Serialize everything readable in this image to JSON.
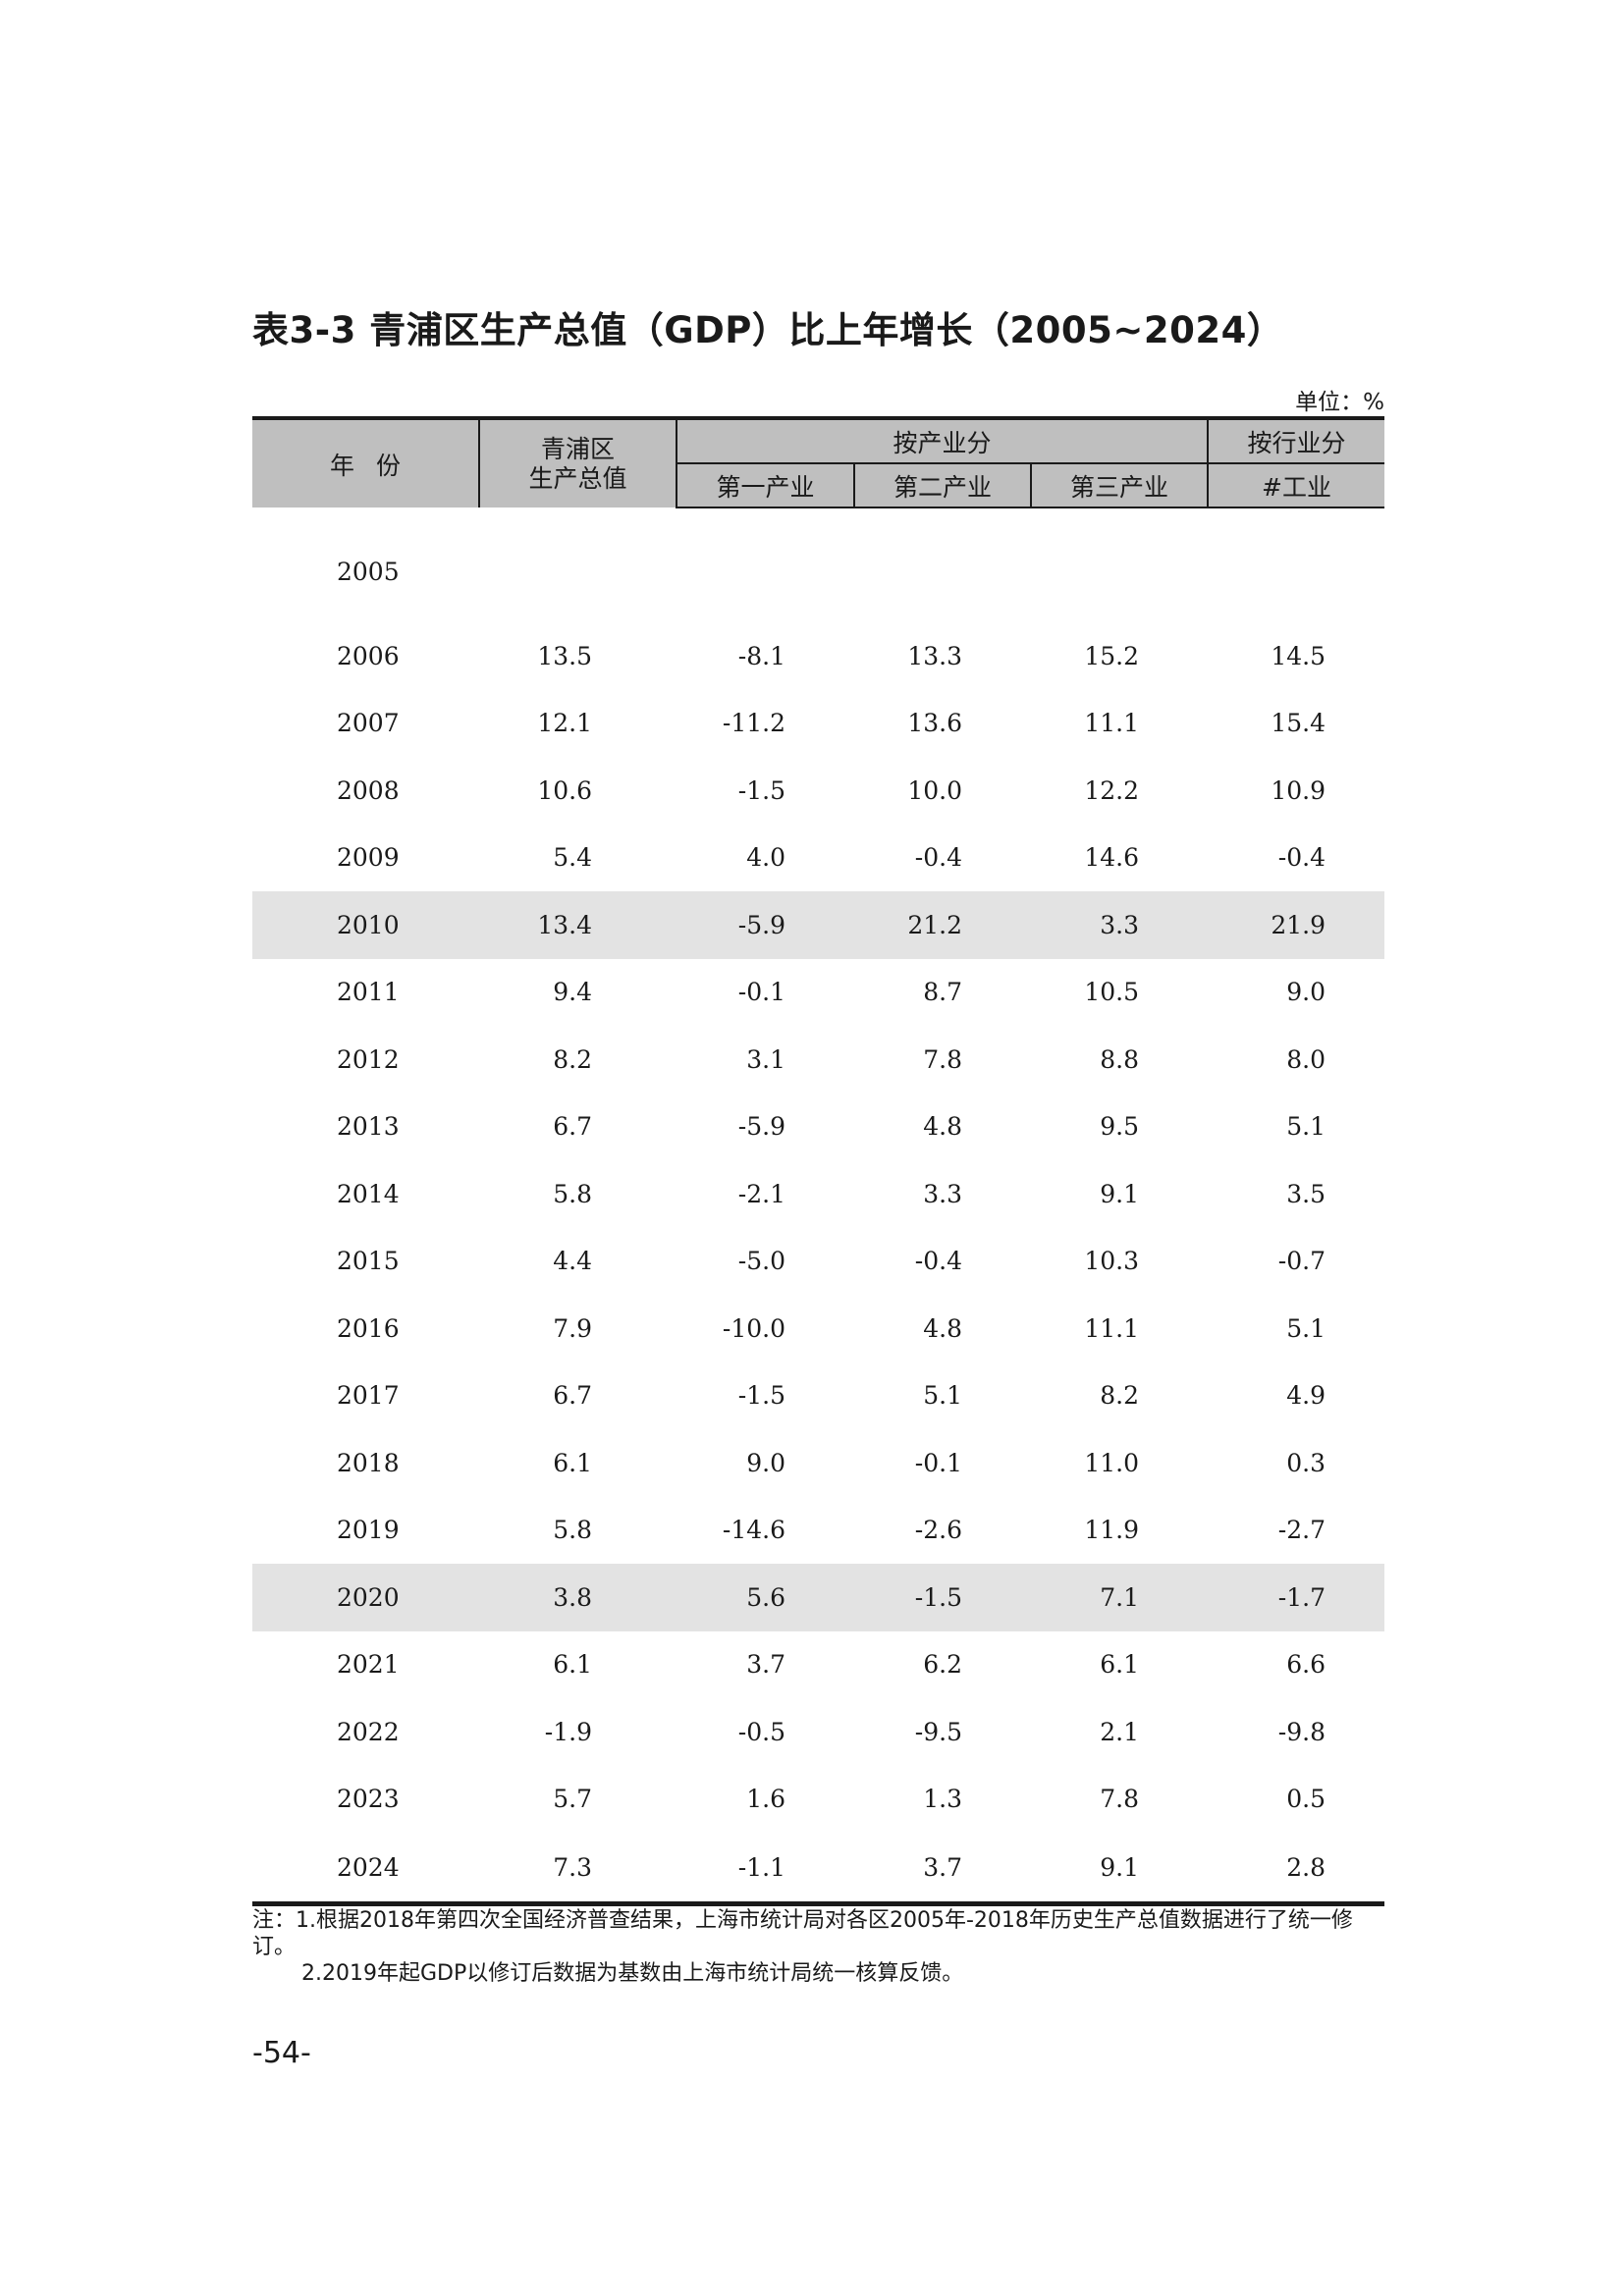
{
  "title": "表3-3  青浦区生产总值（GDP）比上年增长（2005~2024）",
  "unit": "单位：%",
  "header": {
    "year": "年份",
    "gdp_line1": "青浦区",
    "gdp_line2": "生产总值",
    "by_industry": "按产业分",
    "by_sector": "按行业分",
    "primary": "第一产业",
    "secondary": "第二产业",
    "tertiary": "第三产业",
    "industry": "#工业"
  },
  "rows": [
    {
      "year": "2005",
      "gdp": "",
      "primary": "",
      "secondary": "",
      "tertiary": "",
      "industry": ""
    },
    {
      "year": "2006",
      "gdp": "13.5",
      "primary": "-8.1",
      "secondary": "13.3",
      "tertiary": "15.2",
      "industry": "14.5"
    },
    {
      "year": "2007",
      "gdp": "12.1",
      "primary": "-11.2",
      "secondary": "13.6",
      "tertiary": "11.1",
      "industry": "15.4"
    },
    {
      "year": "2008",
      "gdp": "10.6",
      "primary": "-1.5",
      "secondary": "10.0",
      "tertiary": "12.2",
      "industry": "10.9"
    },
    {
      "year": "2009",
      "gdp": "5.4",
      "primary": "4.0",
      "secondary": "-0.4",
      "tertiary": "14.6",
      "industry": "-0.4"
    },
    {
      "year": "2010",
      "gdp": "13.4",
      "primary": "-5.9",
      "secondary": "21.2",
      "tertiary": "3.3",
      "industry": "21.9"
    },
    {
      "year": "2011",
      "gdp": "9.4",
      "primary": "-0.1",
      "secondary": "8.7",
      "tertiary": "10.5",
      "industry": "9.0"
    },
    {
      "year": "2012",
      "gdp": "8.2",
      "primary": "3.1",
      "secondary": "7.8",
      "tertiary": "8.8",
      "industry": "8.0"
    },
    {
      "year": "2013",
      "gdp": "6.7",
      "primary": "-5.9",
      "secondary": "4.8",
      "tertiary": "9.5",
      "industry": "5.1"
    },
    {
      "year": "2014",
      "gdp": "5.8",
      "primary": "-2.1",
      "secondary": "3.3",
      "tertiary": "9.1",
      "industry": "3.5"
    },
    {
      "year": "2015",
      "gdp": "4.4",
      "primary": "-5.0",
      "secondary": "-0.4",
      "tertiary": "10.3",
      "industry": "-0.7"
    },
    {
      "year": "2016",
      "gdp": "7.9",
      "primary": "-10.0",
      "secondary": "4.8",
      "tertiary": "11.1",
      "industry": "5.1"
    },
    {
      "year": "2017",
      "gdp": "6.7",
      "primary": "-1.5",
      "secondary": "5.1",
      "tertiary": "8.2",
      "industry": "4.9"
    },
    {
      "year": "2018",
      "gdp": "6.1",
      "primary": "9.0",
      "secondary": "-0.1",
      "tertiary": "11.0",
      "industry": "0.3"
    },
    {
      "year": "2019",
      "gdp": "5.8",
      "primary": "-14.6",
      "secondary": "-2.6",
      "tertiary": "11.9",
      "industry": "-2.7"
    },
    {
      "year": "2020",
      "gdp": "3.8",
      "primary": "5.6",
      "secondary": "-1.5",
      "tertiary": "7.1",
      "industry": "-1.7"
    },
    {
      "year": "2021",
      "gdp": "6.1",
      "primary": "3.7",
      "secondary": "6.2",
      "tertiary": "6.1",
      "industry": "6.6"
    },
    {
      "year": "2022",
      "gdp": "-1.9",
      "primary": "-0.5",
      "secondary": "-9.5",
      "tertiary": "2.1",
      "industry": "-9.8"
    },
    {
      "year": "2023",
      "gdp": "5.7",
      "primary": "1.6",
      "secondary": "1.3",
      "tertiary": "7.8",
      "industry": "0.5"
    },
    {
      "year": "2024",
      "gdp": "7.3",
      "primary": "-1.1",
      "secondary": "3.7",
      "tertiary": "9.1",
      "industry": "2.8"
    }
  ],
  "shaded_rows": [
    "2010",
    "2020"
  ],
  "notes": {
    "note1": "注：1.根据2018年第四次全国经济普查结果，上海市统计局对各区2005年-2018年历史生产总值数据进行了统一修订。",
    "note2": "2.2019年起GDP以修订后数据为基数由上海市统计局统一核算反馈。"
  },
  "page_number": "-54-",
  "colors": {
    "header_fill": "#bfbfbf",
    "shaded_row_fill": "#e3e3e3",
    "rule": "#1a1a1a"
  }
}
